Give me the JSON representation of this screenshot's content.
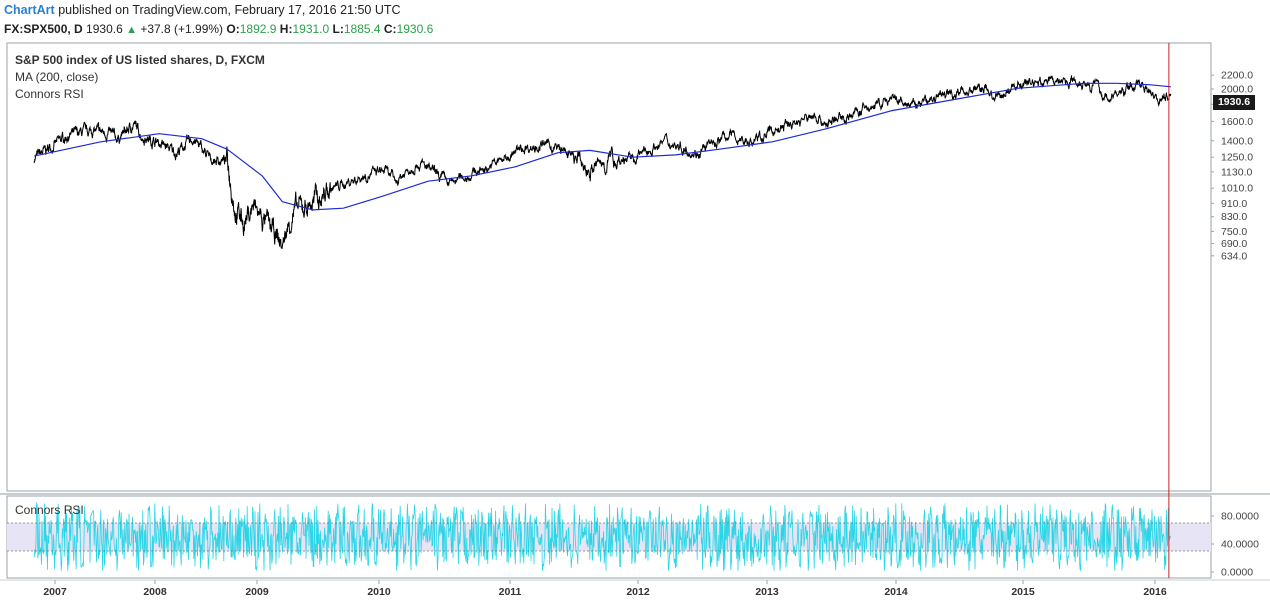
{
  "header": {
    "brand": "ChartArt",
    "published": "published on TradingView.com, February 17, 2016 21:50 UTC",
    "symbol": "FX:SPX500, D",
    "last": "1930.6",
    "change": "+37.8 (+1.99%)",
    "o_label": "O:",
    "o_value": "1892.9",
    "h_label": "H:",
    "h_value": "1931.0",
    "l_label": "L:",
    "l_value": "1885.4",
    "c_label": "C:",
    "c_value": "1930.6"
  },
  "legend": {
    "title": "S&P 500 index of US listed shares, D, FXCM",
    "ma": "MA (200, close)",
    "indicator": "Connors RSI",
    "pane_label": "Connors RSI"
  },
  "price_tag": "1930.6",
  "colors": {
    "price": "#000000",
    "ma": "#1f2ad6",
    "rsi": "#28d6e6",
    "marker": "#cc2222",
    "brand": "#2d7fd1",
    "up": "#2aa14a"
  },
  "chart_data": [
    {
      "type": "line",
      "title": "S&P 500 index of US listed shares, D, FXCM",
      "scale": "log",
      "ylim": [
        634,
        2250
      ],
      "y_ticks": [
        "2200.0",
        "2000.0",
        "1800.0",
        "1600.0",
        "1400.0",
        "1250.0",
        "1130.0",
        "1010.0",
        "910.0",
        "830.0",
        "750.0",
        "690.0",
        "634.0"
      ],
      "x_ticks": [
        "2007",
        "2008",
        "2009",
        "2010",
        "2011",
        "2012",
        "2013",
        "2014",
        "2015",
        "2016"
      ],
      "series": [
        {
          "name": "S&P 500",
          "x": [
            "2006-10",
            "2007-02",
            "2007-05",
            "2007-07",
            "2007-08",
            "2007-10",
            "2007-11",
            "2008-01",
            "2008-03",
            "2008-05",
            "2008-07",
            "2008-09",
            "2008-10",
            "2008-11",
            "2008-12",
            "2009-01",
            "2009-03",
            "2009-04",
            "2009-06",
            "2009-08",
            "2009-11",
            "2010-01",
            "2010-02",
            "2010-04",
            "2010-07",
            "2010-08",
            "2010-11",
            "2011-02",
            "2011-04",
            "2011-06",
            "2011-08",
            "2011-10",
            "2011-12",
            "2012-03",
            "2012-06",
            "2012-09",
            "2012-11",
            "2013-01",
            "2013-05",
            "2013-06",
            "2013-09",
            "2013-12",
            "2014-02",
            "2014-06",
            "2014-09",
            "2014-10",
            "2014-12",
            "2015-03",
            "2015-05",
            "2015-07",
            "2015-08",
            "2015-09",
            "2015-11",
            "2015-12",
            "2016-01",
            "2016-02"
          ],
          "values": [
            1240,
            1450,
            1500,
            1470,
            1420,
            1565,
            1440,
            1380,
            1290,
            1420,
            1230,
            1220,
            870,
            800,
            890,
            820,
            680,
            850,
            920,
            1010,
            1100,
            1140,
            1060,
            1210,
            1040,
            1080,
            1190,
            1340,
            1360,
            1280,
            1140,
            1240,
            1230,
            1400,
            1290,
            1460,
            1380,
            1500,
            1670,
            1570,
            1710,
            1850,
            1780,
            1960,
            2010,
            1850,
            2080,
            2110,
            2130,
            2080,
            1870,
            1920,
            2090,
            2010,
            1860,
            1930.6
          ]
        },
        {
          "name": "MA (200, close)",
          "x": [
            "2006-10",
            "2007-06",
            "2008-01",
            "2008-06",
            "2008-09",
            "2009-01",
            "2009-03",
            "2009-06",
            "2009-09",
            "2010-01",
            "2010-05",
            "2010-09",
            "2011-01",
            "2011-05",
            "2011-08",
            "2011-12",
            "2012-04",
            "2012-08",
            "2013-01",
            "2013-06",
            "2013-12",
            "2014-06",
            "2014-12",
            "2015-06",
            "2015-09",
            "2015-12",
            "2016-02"
          ],
          "values": [
            1260,
            1390,
            1470,
            1420,
            1320,
            1100,
            920,
            870,
            880,
            960,
            1060,
            1100,
            1170,
            1290,
            1310,
            1250,
            1270,
            1320,
            1390,
            1520,
            1720,
            1860,
            2010,
            2080,
            2080,
            2060,
            2030
          ]
        }
      ]
    },
    {
      "type": "line",
      "title": "Connors RSI",
      "ylim": [
        0,
        100
      ],
      "y_ticks": [
        "80.0000",
        "40.0000",
        "0.0000"
      ],
      "bands": [
        30,
        70
      ],
      "series": [
        {
          "name": "Connors RSI"
        }
      ]
    }
  ]
}
